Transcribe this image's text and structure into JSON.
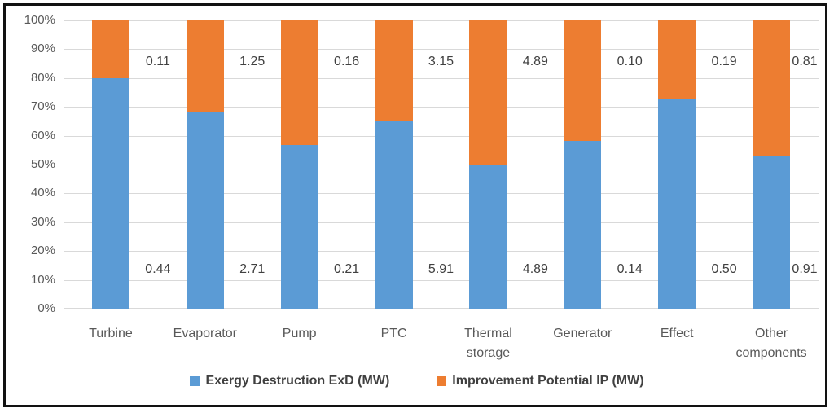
{
  "chart_data": {
    "type": "bar",
    "variant": "stacked-100-percent",
    "title": "",
    "xlabel": "",
    "ylabel": "",
    "categories": [
      "Turbine",
      "Evaporator",
      "Pump",
      "PTC",
      "Thermal storage",
      "Generator",
      "Effect",
      "Other components"
    ],
    "series": [
      {
        "name": "Exergy Destruction ExD (MW)",
        "color": "#5B9BD5",
        "values": [
          0.44,
          2.71,
          0.21,
          5.91,
          4.89,
          0.14,
          0.5,
          0.91
        ]
      },
      {
        "name": "Improvement Potential IP (MW)",
        "color": "#ED7D31",
        "values": [
          0.11,
          1.25,
          0.16,
          3.15,
          4.89,
          0.1,
          0.19,
          0.81
        ]
      }
    ],
    "y_ticks": [
      "100%",
      "90%",
      "80%",
      "70%",
      "60%",
      "50%",
      "40%",
      "30%",
      "20%",
      "10%",
      "0%"
    ],
    "ylim": [
      0,
      100
    ],
    "grid": true,
    "gridline_color": "#D9D9D9",
    "axis_text_color": "#595959",
    "data_label_color": "#404040",
    "border_color": "#121212",
    "legend_position": "bottom"
  }
}
